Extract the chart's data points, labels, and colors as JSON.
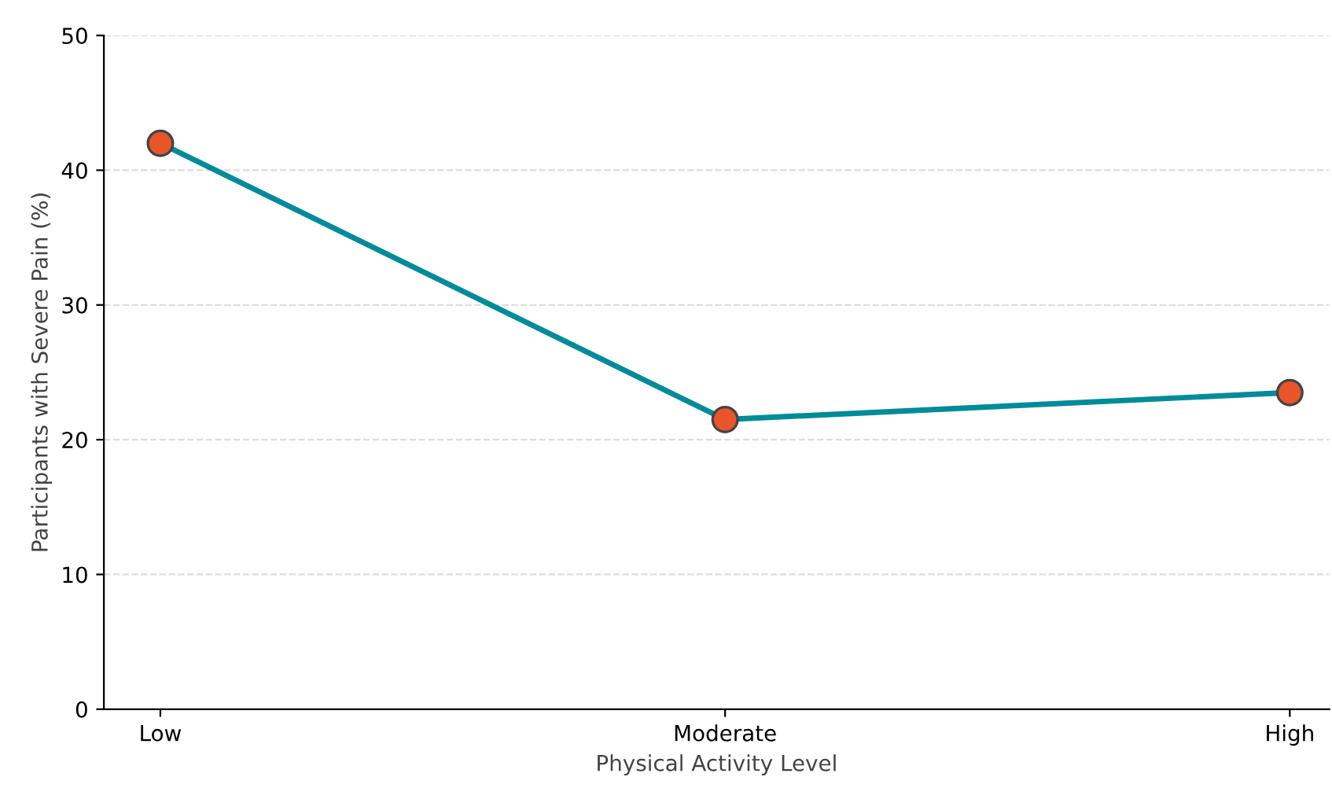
{
  "chart_data": {
    "type": "line",
    "xlabel": "Physical Activity Level",
    "ylabel": "Participants with Severe Pain (%)",
    "categories": [
      "Low",
      "Moderate",
      "High"
    ],
    "series": [
      {
        "color": "#008b9a",
        "colors": [
          "#e8552a",
          "#e8552a",
          "#e8552a"
        ],
        "values": [
          42,
          21.5,
          23.5
        ]
      }
    ],
    "ylim": [
      0,
      50
    ],
    "yticks": [
      0,
      10,
      20,
      30,
      40,
      50
    ],
    "grid": "y",
    "marker": "circle",
    "line_style": "solid"
  }
}
